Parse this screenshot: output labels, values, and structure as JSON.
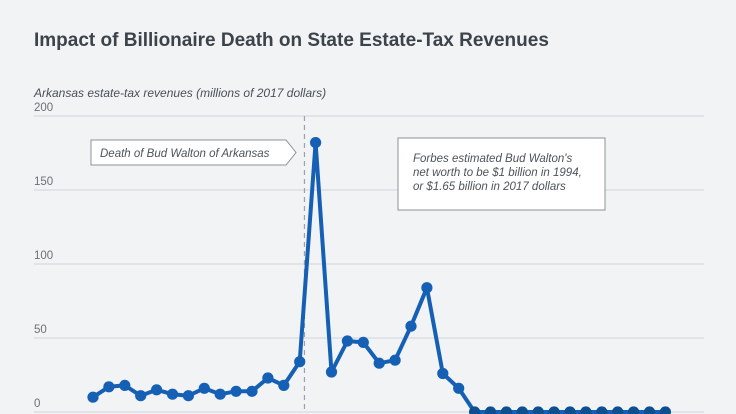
{
  "chart_data": {
    "type": "line",
    "title": "Impact of Billionaire Death on State Estate-Tax Revenues",
    "ylabel": "Arkansas estate-tax revenues (millions of 2017 dollars)",
    "xlabel": "",
    "ylim": [
      0,
      200
    ],
    "y_ticks": [
      0,
      50,
      100,
      150,
      200
    ],
    "grid": true,
    "x_tick_labels_visible": false,
    "series": [
      {
        "values": [
          10,
          17,
          18,
          11,
          15,
          12,
          11,
          16,
          12,
          14,
          14,
          23,
          18,
          34,
          182,
          27,
          48,
          47,
          33,
          35,
          58,
          84,
          26,
          16,
          0,
          0,
          0,
          0,
          0,
          0,
          0,
          0,
          0,
          0,
          0,
          0,
          0
        ],
        "color": "#1560b4"
      }
    ],
    "event_marker": {
      "index": 13.3,
      "label": "Death of Bud Walton of Arkansas"
    },
    "annotation": {
      "lines": [
        "Forbes estimated Bud Walton's",
        "net worth to be $1 billion in 1994,",
        "or $1.65 billion in 2017 dollars"
      ]
    },
    "colors": {
      "background": "#f1f3f5",
      "line": "#1560b4",
      "zero_point": "#0d4f8f",
      "grid": "#cfd4d9"
    }
  }
}
